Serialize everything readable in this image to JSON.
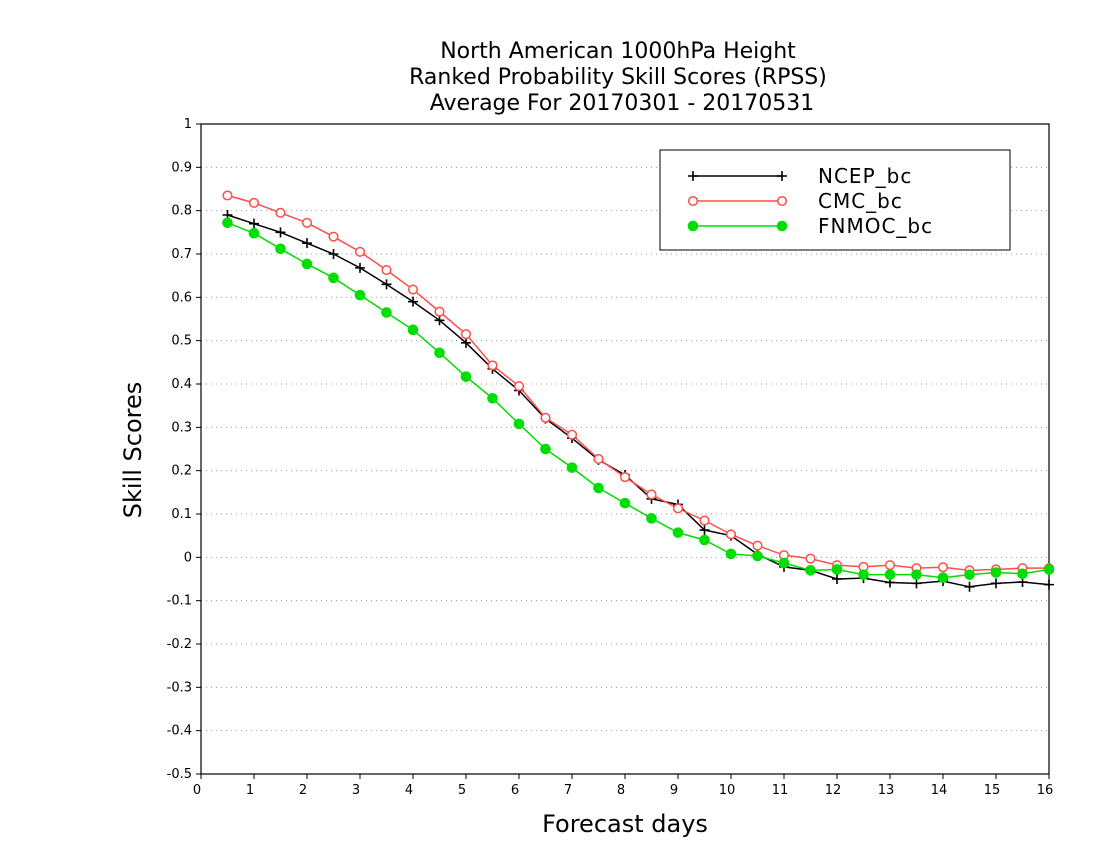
{
  "chart_data": {
    "type": "line",
    "title": [
      "North American 1000hPa Height",
      "Ranked Probability Skill Scores (RPSS)",
      "Average For 20170301 - 20170531"
    ],
    "xlabel": "Forecast days",
    "ylabel": "Skill Scores",
    "xlim": [
      0,
      16
    ],
    "ylim": [
      -0.5,
      1
    ],
    "xticks": [
      0,
      1,
      2,
      3,
      4,
      5,
      6,
      7,
      8,
      9,
      10,
      11,
      12,
      13,
      14,
      15,
      16
    ],
    "yticks": [
      -0.5,
      -0.4,
      -0.3,
      -0.2,
      -0.1,
      0,
      0.1,
      0.2,
      0.3,
      0.4,
      0.5,
      0.6,
      0.7,
      0.8,
      0.9,
      1
    ],
    "ytick_labels": [
      "-0.5",
      "-0.4",
      "-0.3",
      "-0.2",
      "-0.1",
      "0",
      "0.1",
      "0.2",
      "0.3",
      "0.4",
      "0.5",
      "0.6",
      "0.7",
      "0.8",
      "0.9",
      "1"
    ],
    "grid": "horizontal dotted",
    "legend_position": "top-right",
    "x": [
      0.5,
      1,
      1.5,
      2,
      2.5,
      3,
      3.5,
      4,
      4.5,
      5,
      5.5,
      6,
      6.5,
      7,
      7.5,
      8,
      8.5,
      9,
      9.5,
      10,
      10.5,
      11,
      11.5,
      12,
      12.5,
      13,
      13.5,
      14,
      14.5,
      15,
      15.5,
      16
    ],
    "series": [
      {
        "name": "NCEP_bc",
        "color": "#000000",
        "marker": "plus",
        "values": [
          0.79,
          0.77,
          0.75,
          0.725,
          0.7,
          0.668,
          0.63,
          0.59,
          0.547,
          0.495,
          0.435,
          0.385,
          0.32,
          0.275,
          0.225,
          0.19,
          0.135,
          0.122,
          0.063,
          0.05,
          0.007,
          -0.022,
          -0.03,
          -0.05,
          -0.048,
          -0.058,
          -0.06,
          -0.055,
          -0.068,
          -0.06,
          -0.057,
          -0.063
        ]
      },
      {
        "name": "CMC_bc",
        "color": "#ff4d4d",
        "marker": "open-circle",
        "values": [
          0.835,
          0.818,
          0.795,
          0.772,
          0.74,
          0.705,
          0.663,
          0.618,
          0.567,
          0.515,
          0.443,
          0.395,
          0.322,
          0.283,
          0.227,
          0.185,
          0.145,
          0.113,
          0.085,
          0.053,
          0.027,
          0.005,
          -0.003,
          -0.018,
          -0.022,
          -0.018,
          -0.025,
          -0.023,
          -0.03,
          -0.028,
          -0.025,
          -0.025
        ]
      },
      {
        "name": "FNMOC_bc",
        "color": "#00dd00",
        "marker": "filled-circle",
        "values": [
          0.772,
          0.748,
          0.712,
          0.677,
          0.645,
          0.605,
          0.565,
          0.525,
          0.472,
          0.417,
          0.367,
          0.308,
          0.25,
          0.207,
          0.16,
          0.125,
          0.09,
          0.057,
          0.04,
          0.008,
          0.003,
          -0.013,
          -0.03,
          -0.028,
          -0.04,
          -0.04,
          -0.04,
          -0.047,
          -0.04,
          -0.035,
          -0.038,
          -0.028
        ]
      }
    ]
  }
}
